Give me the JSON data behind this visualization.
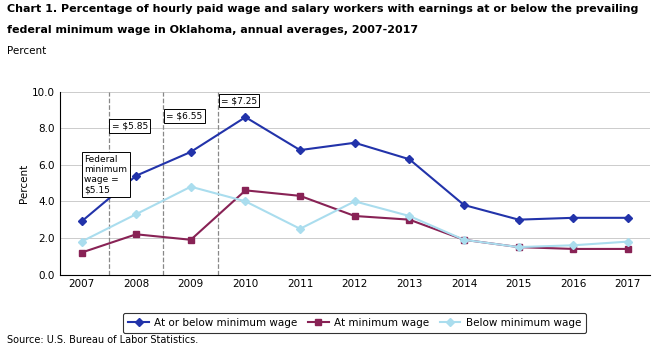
{
  "title_line1": "Chart 1. Percentage of hourly paid wage and salary workers with earnings at or below the prevailing",
  "title_line2": "federal minimum wage in Oklahoma, annual averages, 2007-2017",
  "ylabel": "Percent",
  "source": "Source: U.S. Bureau of Labor Statistics.",
  "years": [
    2007,
    2008,
    2009,
    2010,
    2011,
    2012,
    2013,
    2014,
    2015,
    2016,
    2017
  ],
  "at_or_below": [
    2.9,
    5.4,
    6.7,
    8.6,
    6.8,
    7.2,
    6.3,
    3.8,
    3.0,
    3.1,
    3.1
  ],
  "at_minimum": [
    1.2,
    2.2,
    1.9,
    4.6,
    4.3,
    3.2,
    3.0,
    1.9,
    1.5,
    1.4,
    1.4
  ],
  "below_minimum": [
    1.8,
    3.3,
    4.8,
    4.0,
    2.5,
    4.0,
    3.2,
    1.9,
    1.5,
    1.6,
    1.8
  ],
  "color_blue": "#2233aa",
  "color_maroon": "#882255",
  "color_lightblue": "#aaddee",
  "ylim": [
    0.0,
    10.0
  ],
  "yticks": [
    0.0,
    2.0,
    4.0,
    6.0,
    8.0,
    10.0
  ],
  "dashed_line_years": [
    2007,
    2008,
    2009
  ],
  "legend_labels": [
    "At or below minimum wage",
    "At minimum wage",
    "Below minimum wage"
  ],
  "xlim_left": 2006.6,
  "xlim_right": 2017.4
}
